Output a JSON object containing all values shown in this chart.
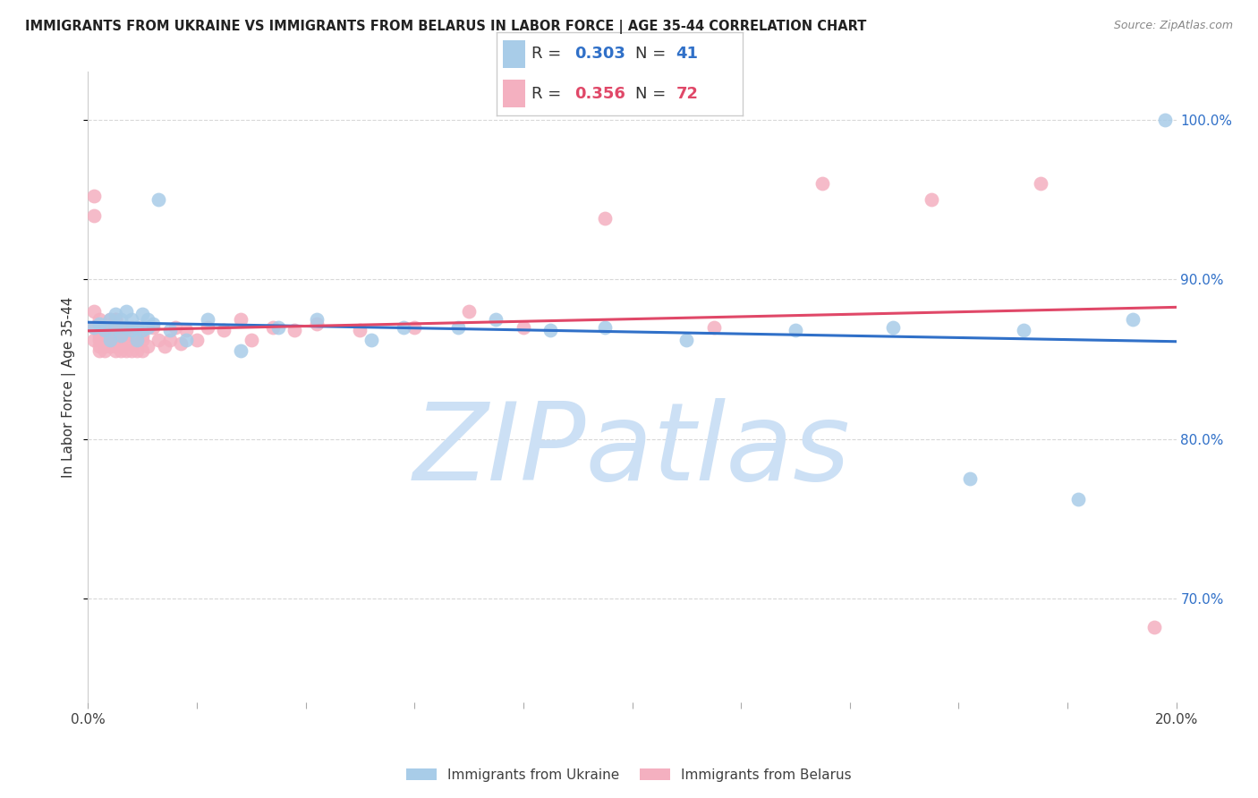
{
  "title": "IMMIGRANTS FROM UKRAINE VS IMMIGRANTS FROM BELARUS IN LABOR FORCE | AGE 35-44 CORRELATION CHART",
  "source": "Source: ZipAtlas.com",
  "ylabel": "In Labor Force | Age 35-44",
  "ukraine_label": "Immigrants from Ukraine",
  "belarus_label": "Immigrants from Belarus",
  "ukraine_R": 0.303,
  "ukraine_N": 41,
  "belarus_R": 0.356,
  "belarus_N": 72,
  "ukraine_dot_color": "#a8cce8",
  "belarus_dot_color": "#f4b0c0",
  "ukraine_line_color": "#3070c8",
  "belarus_line_color": "#e04868",
  "right_axis_color": "#3070c8",
  "title_color": "#222222",
  "source_color": "#888888",
  "ylabel_color": "#333333",
  "background_color": "#ffffff",
  "grid_color": "#d8d8d8",
  "watermark_color": "#cce0f5",
  "xlim": [
    0.0,
    0.2
  ],
  "ylim": [
    0.635,
    1.03
  ],
  "right_yticks": [
    0.7,
    0.8,
    0.9,
    1.0
  ],
  "right_ytick_labels": [
    "70.0%",
    "80.0%",
    "90.0%",
    "100.0%"
  ],
  "xtick_positions": [
    0.0,
    0.02,
    0.04,
    0.06,
    0.08,
    0.1,
    0.12,
    0.14,
    0.16,
    0.18,
    0.2
  ],
  "ukraine_x": [
    0.001,
    0.002,
    0.003,
    0.004,
    0.004,
    0.005,
    0.005,
    0.006,
    0.006,
    0.007,
    0.007,
    0.008,
    0.008,
    0.009,
    0.009,
    0.01,
    0.01,
    0.011,
    0.011,
    0.012,
    0.013,
    0.015,
    0.018,
    0.022,
    0.028,
    0.035,
    0.042,
    0.052,
    0.058,
    0.068,
    0.075,
    0.085,
    0.095,
    0.11,
    0.13,
    0.148,
    0.162,
    0.172,
    0.182,
    0.192,
    0.198
  ],
  "ukraine_y": [
    0.87,
    0.872,
    0.868,
    0.875,
    0.862,
    0.87,
    0.878,
    0.865,
    0.875,
    0.87,
    0.88,
    0.868,
    0.875,
    0.87,
    0.862,
    0.878,
    0.868,
    0.875,
    0.87,
    0.872,
    0.95,
    0.868,
    0.862,
    0.875,
    0.855,
    0.87,
    0.875,
    0.862,
    0.87,
    0.87,
    0.875,
    0.868,
    0.87,
    0.862,
    0.868,
    0.87,
    0.775,
    0.868,
    0.762,
    0.875,
    1.0
  ],
  "belarus_x": [
    0.001,
    0.001,
    0.001,
    0.001,
    0.001,
    0.002,
    0.002,
    0.002,
    0.002,
    0.002,
    0.003,
    0.003,
    0.003,
    0.003,
    0.004,
    0.004,
    0.004,
    0.004,
    0.004,
    0.005,
    0.005,
    0.005,
    0.005,
    0.005,
    0.005,
    0.005,
    0.005,
    0.005,
    0.006,
    0.006,
    0.006,
    0.006,
    0.006,
    0.007,
    0.007,
    0.007,
    0.007,
    0.008,
    0.008,
    0.008,
    0.009,
    0.009,
    0.009,
    0.01,
    0.01,
    0.01,
    0.011,
    0.012,
    0.013,
    0.014,
    0.015,
    0.016,
    0.017,
    0.018,
    0.02,
    0.022,
    0.025,
    0.028,
    0.03,
    0.034,
    0.038,
    0.042,
    0.05,
    0.06,
    0.07,
    0.08,
    0.095,
    0.115,
    0.135,
    0.155,
    0.175,
    0.196
  ],
  "belarus_y": [
    0.87,
    0.94,
    0.952,
    0.88,
    0.862,
    0.855,
    0.858,
    0.865,
    0.875,
    0.862,
    0.855,
    0.858,
    0.862,
    0.87,
    0.87,
    0.875,
    0.858,
    0.862,
    0.865,
    0.855,
    0.86,
    0.865,
    0.87,
    0.875,
    0.858,
    0.862,
    0.87,
    0.875,
    0.855,
    0.858,
    0.865,
    0.87,
    0.862,
    0.855,
    0.862,
    0.865,
    0.87,
    0.855,
    0.86,
    0.87,
    0.855,
    0.862,
    0.87,
    0.855,
    0.862,
    0.865,
    0.858,
    0.87,
    0.862,
    0.858,
    0.862,
    0.87,
    0.86,
    0.868,
    0.862,
    0.87,
    0.868,
    0.875,
    0.862,
    0.87,
    0.868,
    0.872,
    0.868,
    0.87,
    0.88,
    0.87,
    0.938,
    0.87,
    0.96,
    0.95,
    0.96,
    0.682
  ]
}
